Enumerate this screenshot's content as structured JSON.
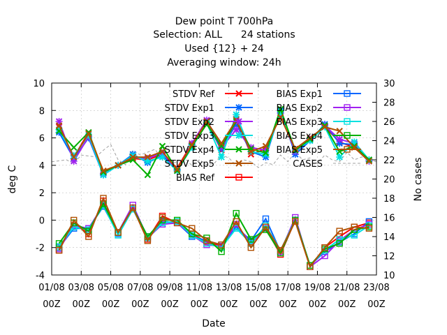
{
  "chart_data": {
    "type": "line",
    "title_lines": [
      "Dew point T 700hPa",
      "Selection: ALL      24 stations",
      "Used {12} + 24",
      "Averaging window: 24h"
    ],
    "xlabel": "Date",
    "ylabel": "deg C",
    "y2label": "No cases",
    "ylim": [
      -4,
      10
    ],
    "y2lim": [
      10,
      30
    ],
    "yticks": [
      -4,
      -2,
      0,
      2,
      4,
      6,
      8,
      10
    ],
    "y2ticks": [
      10,
      12,
      14,
      16,
      18,
      20,
      22,
      24,
      26,
      28,
      30
    ],
    "xtick_labels": [
      {
        "date": "01/08",
        "time": "00Z"
      },
      {
        "date": "03/08",
        "time": "00Z"
      },
      {
        "date": "05/08",
        "time": "00Z"
      },
      {
        "date": "07/08",
        "time": "00Z"
      },
      {
        "date": "09/08",
        "time": "00Z"
      },
      {
        "date": "11/08",
        "time": "00Z"
      },
      {
        "date": "13/08",
        "time": "00Z"
      },
      {
        "date": "15/08",
        "time": "00Z"
      },
      {
        "date": "17/08",
        "time": "00Z"
      },
      {
        "date": "19/08",
        "time": "00Z"
      },
      {
        "date": "21/08",
        "time": "00Z"
      },
      {
        "date": "23/08",
        "time": "00Z"
      }
    ],
    "x_start": "01/08 00Z",
    "x_step_hours": 24,
    "x_range_days": [
      0,
      22
    ],
    "x_days": [
      0.5,
      1.5,
      2.5,
      3.5,
      4.5,
      5.5,
      6.5,
      7.5,
      8.5,
      9.5,
      10.5,
      11.5,
      12.5,
      13.5,
      14.5,
      15.5,
      16.5,
      17.5,
      18.5,
      19.5,
      20.5,
      21.5
    ],
    "legend_placement": "top-right",
    "grid": true,
    "series": [
      {
        "name": "STDV Ref",
        "color": "#ff0000",
        "marker": "x",
        "values": [
          6.8,
          4.6,
          6.4,
          3.5,
          4.0,
          4.5,
          4.4,
          4.8,
          3.8,
          5.6,
          7.2,
          5.1,
          7.4,
          4.8,
          5.2,
          7.7,
          5.0,
          6.0,
          6.8,
          5.7,
          5.3,
          4.3
        ]
      },
      {
        "name": "STDV Exp1",
        "color": "#0066ff",
        "marker": "star",
        "values": [
          6.4,
          4.5,
          6.0,
          3.3,
          4.0,
          4.8,
          4.2,
          4.7,
          3.7,
          5.5,
          7.1,
          5.2,
          7.0,
          5.0,
          4.6,
          8.0,
          4.8,
          5.8,
          7.0,
          5.6,
          5.5,
          4.4
        ]
      },
      {
        "name": "STDV Exp2",
        "color": "#a020f0",
        "marker": "star",
        "values": [
          7.2,
          4.3,
          6.1,
          3.4,
          4.0,
          4.6,
          4.5,
          4.9,
          3.6,
          5.6,
          7.3,
          5.3,
          6.6,
          5.3,
          5.1,
          7.8,
          5.0,
          5.9,
          6.9,
          5.9,
          5.6,
          4.3
        ]
      },
      {
        "name": "STDV Exp3",
        "color": "#00e0e0",
        "marker": "star",
        "values": [
          6.6,
          4.7,
          6.2,
          3.3,
          4.0,
          4.7,
          4.3,
          4.6,
          3.6,
          5.3,
          7.1,
          4.6,
          7.7,
          5.0,
          4.8,
          7.9,
          5.1,
          5.8,
          6.8,
          4.6,
          5.7,
          4.4
        ]
      },
      {
        "name": "STDV Exp4",
        "color": "#00b000",
        "marker": "x",
        "values": [
          6.5,
          5.3,
          6.4,
          3.5,
          4.0,
          4.4,
          3.3,
          5.4,
          3.6,
          5.4,
          7.0,
          5.4,
          7.2,
          5.2,
          4.9,
          8.1,
          5.1,
          5.9,
          6.9,
          5.0,
          5.4,
          4.4
        ]
      },
      {
        "name": "STDV Exp5",
        "color": "#b05000",
        "marker": "x",
        "values": [
          6.9,
          4.6,
          6.3,
          3.6,
          4.0,
          4.6,
          4.6,
          5.0,
          3.7,
          5.5,
          7.2,
          5.6,
          7.3,
          5.0,
          5.4,
          7.5,
          5.2,
          6.0,
          6.8,
          6.5,
          5.3,
          4.3
        ]
      },
      {
        "name": "BIAS Ref",
        "color": "#ff0000",
        "marker": "square",
        "values": [
          -2.2,
          -0.2,
          -1.0,
          1.4,
          -0.9,
          0.9,
          -1.4,
          0.3,
          -0.2,
          -1.0,
          -1.6,
          -1.9,
          -0.4,
          -1.6,
          -0.6,
          -2.5,
          0.0,
          -3.4,
          -2.0,
          -1.2,
          -0.5,
          -0.2
        ]
      },
      {
        "name": "BIAS Exp1",
        "color": "#0066ff",
        "marker": "square",
        "values": [
          -2.0,
          -0.6,
          -0.6,
          1.0,
          -1.0,
          0.9,
          -1.2,
          -0.1,
          -0.2,
          -1.2,
          -1.5,
          -1.8,
          -0.5,
          -1.5,
          0.1,
          -2.3,
          0.0,
          -3.3,
          -2.3,
          -1.6,
          -1.0,
          -0.1
        ]
      },
      {
        "name": "BIAS Exp2",
        "color": "#a020f0",
        "marker": "square",
        "values": [
          -2.1,
          -0.4,
          -0.6,
          1.1,
          -0.9,
          1.1,
          -1.3,
          -0.3,
          -0.2,
          -1.1,
          -1.8,
          -1.9,
          -0.3,
          -1.7,
          -0.6,
          -2.3,
          0.2,
          -3.4,
          -2.6,
          -1.5,
          -0.7,
          -0.3
        ]
      },
      {
        "name": "BIAS Exp3",
        "color": "#00e0e0",
        "marker": "square",
        "values": [
          -1.9,
          -0.5,
          -0.7,
          1.1,
          -1.1,
          0.8,
          -1.3,
          -0.2,
          -0.1,
          -1.1,
          -1.7,
          -2.0,
          -0.6,
          -1.7,
          -0.4,
          -2.2,
          0.0,
          -3.3,
          -2.2,
          -1.4,
          -1.1,
          -0.4
        ]
      },
      {
        "name": "BIAS Exp4",
        "color": "#00b000",
        "marker": "square",
        "values": [
          -1.7,
          -0.2,
          -0.8,
          1.2,
          -0.9,
          0.9,
          -1.2,
          0.0,
          0.0,
          -1.0,
          -1.3,
          -2.3,
          0.5,
          -1.4,
          -0.7,
          -2.4,
          0.0,
          -3.3,
          -2.1,
          -1.7,
          -0.7,
          -0.5
        ]
      },
      {
        "name": "BIAS Exp5",
        "color": "#b05000",
        "marker": "square",
        "values": [
          -2.2,
          0.0,
          -1.2,
          1.6,
          -0.9,
          0.9,
          -1.5,
          0.2,
          -0.2,
          -0.6,
          -1.5,
          -1.8,
          -0.1,
          -2.0,
          -0.5,
          -2.2,
          -0.1,
          -3.4,
          -2.0,
          -0.8,
          -0.5,
          -0.6
        ]
      }
    ],
    "cases": {
      "name": "CASES",
      "axis": "right",
      "color": "#a0a0a0",
      "style": "dashed",
      "x_days": [
        0.0,
        1.0,
        1.5,
        2.0,
        2.5,
        3.0,
        3.5,
        4.0,
        4.5,
        5.0,
        5.5,
        6.0,
        6.5,
        7.0,
        7.5,
        8.0,
        8.5,
        9.0,
        9.5,
        10.0,
        10.5,
        11.0,
        11.5,
        12.0,
        12.5,
        13.0,
        13.5,
        14.0,
        14.5,
        15.0,
        15.5,
        16.0,
        16.5,
        17.0,
        17.5,
        18.0,
        18.5,
        19.0,
        19.5,
        20.0,
        20.5,
        21.0,
        21.5,
        22.0
      ],
      "values": [
        21.8,
        22.0,
        21.6,
        22.5,
        22.4,
        22.3,
        23.0,
        23.6,
        22.0,
        21.5,
        23.0,
        22.5,
        22.8,
        23.1,
        22.0,
        21.5,
        21.8,
        22.2,
        21.4,
        22.0,
        21.5,
        21.6,
        22.5,
        22.2,
        21.4,
        22.0,
        21.8,
        21.2,
        21.7,
        21.5,
        22.5,
        21.8,
        22.8,
        22.0,
        22.2,
        21.6,
        22.5,
        22.0,
        21.8,
        22.8,
        22.0,
        22.3,
        22.0,
        21.8
      ]
    }
  }
}
